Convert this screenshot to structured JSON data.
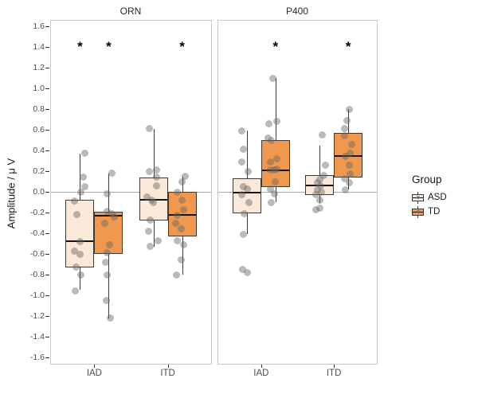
{
  "chart_data": {
    "type": "boxplot",
    "title": "",
    "xlabel": "",
    "ylabel": "Amplitude / μ V",
    "ylim": [
      -1.6,
      1.6
    ],
    "ytick_values": [
      1.6,
      1.4,
      1.2,
      1.0,
      0.8,
      0.6,
      0.4,
      0.2,
      0.0,
      -0.2,
      -0.4,
      -0.6,
      -0.8,
      -1.0,
      -1.2,
      -1.4,
      -1.6
    ],
    "x_categories": [
      "IAD",
      "ITD"
    ],
    "groups": [
      "ASD",
      "TD"
    ],
    "grid": false,
    "zero_reference_line": 0.0,
    "significance_marker": "*",
    "asterisk_y": 1.4,
    "colors": {
      "ASD": "#FAE8D8",
      "TD": "#F0984E",
      "box_stroke": "#3A3A3A",
      "median": "#141414",
      "point": "rgba(102,102,102,0.45)",
      "zero_line": "#ABABAB",
      "panel_border": "#C9C9C9"
    },
    "legend": {
      "title": "Group",
      "position": "right",
      "entries": [
        {
          "label": "ASD",
          "color": "#FAE8D8"
        },
        {
          "label": "TD",
          "color": "#F0984E"
        }
      ]
    },
    "panels": [
      {
        "title": "ORN",
        "asterisks": [
          {
            "category": "IAD",
            "group": "ASD"
          },
          {
            "category": "IAD",
            "group": "TD"
          },
          {
            "category": "ITD",
            "group": "TD"
          }
        ],
        "boxes": [
          {
            "category": "IAD",
            "group": "ASD",
            "whisker_low": -0.95,
            "q1": -0.73,
            "median": -0.48,
            "q3": -0.08,
            "whisker_high": 0.37,
            "points": [
              [
                6,
                0.37
              ],
              [
                4,
                0.14
              ],
              [
                6,
                0.05
              ],
              [
                1,
                0.0
              ],
              [
                -7,
                -0.09
              ],
              [
                -4,
                -0.22
              ],
              [
                0,
                -0.48
              ],
              [
                -7,
                -0.57
              ],
              [
                0,
                -0.6
              ],
              [
                -5,
                -0.73
              ],
              [
                1,
                -0.8
              ],
              [
                -6,
                -0.96
              ]
            ]
          },
          {
            "category": "IAD",
            "group": "TD",
            "whisker_low": -1.22,
            "q1": -0.6,
            "median": -0.23,
            "q3": -0.19,
            "whisker_high": 0.18,
            "points": [
              [
                4,
                0.18
              ],
              [
                -2,
                -0.02
              ],
              [
                -2,
                -0.19
              ],
              [
                4,
                -0.21
              ],
              [
                7,
                -0.24
              ],
              [
                -5,
                -0.3
              ],
              [
                1,
                -0.51
              ],
              [
                -2,
                -0.59
              ],
              [
                -4,
                -0.68
              ],
              [
                -2,
                -0.8
              ],
              [
                -3,
                -1.05
              ],
              [
                2,
                -1.22
              ]
            ]
          },
          {
            "category": "ITD",
            "group": "ASD",
            "whisker_low": -0.53,
            "q1": -0.28,
            "median": -0.08,
            "q3": 0.14,
            "whisker_high": 0.61,
            "points": [
              [
                -5,
                0.61
              ],
              [
                -5,
                0.2
              ],
              [
                4,
                0.21
              ],
              [
                4,
                0.14
              ],
              [
                4,
                0.06
              ],
              [
                -8,
                -0.05
              ],
              [
                -2,
                -0.08
              ],
              [
                0,
                -0.1
              ],
              [
                -4,
                -0.27
              ],
              [
                -6,
                -0.38
              ],
              [
                6,
                -0.47
              ],
              [
                -4,
                -0.53
              ]
            ]
          },
          {
            "category": "ITD",
            "group": "TD",
            "whisker_low": -0.8,
            "q1": -0.43,
            "median": -0.22,
            "q3": 0.0,
            "whisker_high": 0.15,
            "points": [
              [
                4,
                0.15
              ],
              [
                0,
                0.1
              ],
              [
                -6,
                0.0
              ],
              [
                0,
                -0.08
              ],
              [
                2,
                -0.17
              ],
              [
                -6,
                -0.23
              ],
              [
                -8,
                -0.3
              ],
              [
                -1,
                -0.36
              ],
              [
                -6,
                -0.47
              ],
              [
                2,
                -0.51
              ],
              [
                -1,
                -0.66
              ],
              [
                -7,
                -0.8
              ]
            ]
          }
        ]
      },
      {
        "title": "P400",
        "asterisks": [
          {
            "category": "IAD",
            "group": "TD"
          },
          {
            "category": "ITD",
            "group": "TD"
          }
        ],
        "boxes": [
          {
            "category": "IAD",
            "group": "ASD",
            "whisker_low": -0.41,
            "q1": -0.21,
            "median": -0.01,
            "q3": 0.13,
            "whisker_high": 0.59,
            "points": [
              [
                -6,
                0.59
              ],
              [
                -4,
                0.41
              ],
              [
                -6,
                0.29
              ],
              [
                2,
                0.2
              ],
              [
                -4,
                0.05
              ],
              [
                1,
                0.03
              ],
              [
                -6,
                -0.03
              ],
              [
                3,
                -0.1
              ],
              [
                -3,
                -0.21
              ],
              [
                -4,
                -0.41
              ],
              [
                -5,
                -0.75
              ],
              [
                1,
                -0.78
              ]
            ]
          },
          {
            "category": "IAD",
            "group": "TD",
            "whisker_low": -0.1,
            "q1": 0.05,
            "median": 0.21,
            "q3": 0.5,
            "whisker_high": 1.1,
            "points": [
              [
                -3,
                1.1
              ],
              [
                2,
                0.68
              ],
              [
                -8,
                0.66
              ],
              [
                -9,
                0.52
              ],
              [
                -5,
                0.5
              ],
              [
                2,
                0.32
              ],
              [
                -6,
                0.29
              ],
              [
                -6,
                0.21
              ],
              [
                -1,
                0.21
              ],
              [
                2,
                0.22
              ],
              [
                0,
                0.1
              ],
              [
                -6,
                0.03
              ],
              [
                -1,
                -0.02
              ],
              [
                -5,
                -0.1
              ]
            ]
          },
          {
            "category": "ITD",
            "group": "ASD",
            "whisker_low": -0.11,
            "q1": -0.03,
            "median": 0.06,
            "q3": 0.16,
            "whisker_high": 0.45,
            "points": [
              [
                3,
                0.55
              ],
              [
                7,
                0.26
              ],
              [
                5,
                0.16
              ],
              [
                0,
                0.12
              ],
              [
                -3,
                0.09
              ],
              [
                1,
                0.06
              ],
              [
                -3,
                0.02
              ],
              [
                2,
                0.0
              ],
              [
                -5,
                -0.03
              ],
              [
                0,
                -0.08
              ],
              [
                0,
                -0.16
              ],
              [
                -5,
                -0.17
              ]
            ]
          },
          {
            "category": "ITD",
            "group": "TD",
            "whisker_low": 0.02,
            "q1": 0.14,
            "median": 0.35,
            "q3": 0.57,
            "whisker_high": 0.8,
            "points": [
              [
                1,
                0.8
              ],
              [
                -2,
                0.69
              ],
              [
                -5,
                0.61
              ],
              [
                -5,
                0.54
              ],
              [
                4,
                0.46
              ],
              [
                2,
                0.37
              ],
              [
                -4,
                0.34
              ],
              [
                1,
                0.26
              ],
              [
                2,
                0.17
              ],
              [
                -5,
                0.13
              ],
              [
                1,
                0.09
              ],
              [
                -4,
                0.02
              ]
            ]
          }
        ]
      }
    ]
  }
}
